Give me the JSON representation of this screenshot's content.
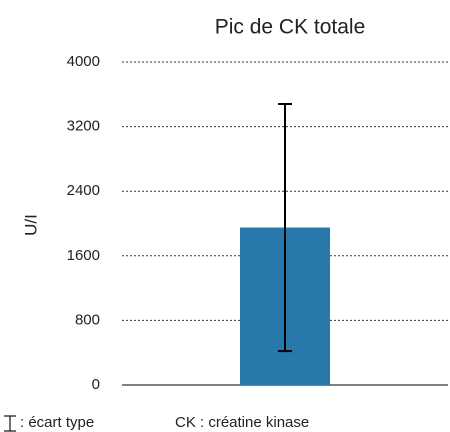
{
  "chart_data": {
    "type": "bar",
    "title": "Pic de CK totale",
    "y_label": "U/I",
    "categories": [
      null
    ],
    "values": [
      1950
    ],
    "errors": [
      1530
    ],
    "color": "#2878ac",
    "ylim": [
      0,
      4000
    ],
    "yticks": [
      0,
      800,
      1600,
      2400,
      3200,
      4000
    ],
    "grid": true,
    "notes": [
      ": écart type",
      "CK : créatine kinase"
    ]
  }
}
